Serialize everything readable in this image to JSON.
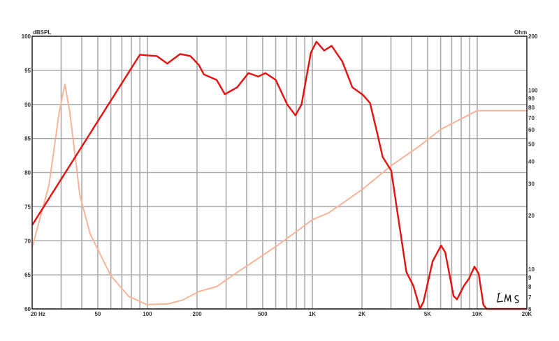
{
  "chart_data": {
    "type": "line",
    "title": "",
    "ylabel_left": "dBSPL",
    "ylabel_right": "Ohm",
    "x_scale": "log",
    "xlim": [
      20,
      20000
    ],
    "ylim_left": [
      60,
      100
    ],
    "ylim_right": [
      6,
      200
    ],
    "y_right_scale": "log",
    "grid": true,
    "x_ticks": [
      {
        "value": 20,
        "label": "20  Hz"
      },
      {
        "value": 50,
        "label": "50"
      },
      {
        "value": 100,
        "label": "100"
      },
      {
        "value": 200,
        "label": "200"
      },
      {
        "value": 500,
        "label": "500"
      },
      {
        "value": 1000,
        "label": "1K"
      },
      {
        "value": 2000,
        "label": "2K"
      },
      {
        "value": 5000,
        "label": "5K"
      },
      {
        "value": 10000,
        "label": "10K"
      },
      {
        "value": 20000,
        "label": "20K"
      }
    ],
    "y_left_ticks": [
      {
        "value": 100,
        "label": "100"
      },
      {
        "value": 95,
        "label": "95"
      },
      {
        "value": 90,
        "label": "90"
      },
      {
        "value": 85,
        "label": "85"
      },
      {
        "value": 80,
        "label": "80"
      },
      {
        "value": 75,
        "label": "75"
      },
      {
        "value": 70,
        "label": "70"
      },
      {
        "value": 65,
        "label": "65"
      },
      {
        "value": 60,
        "label": "60"
      }
    ],
    "y_right_ticks": [
      {
        "value": 200,
        "label": "200"
      },
      {
        "value": 100,
        "label": "100"
      },
      {
        "value": 90,
        "label": "90"
      },
      {
        "value": 80,
        "label": "80"
      },
      {
        "value": 70,
        "label": "70"
      },
      {
        "value": 60,
        "label": "60"
      },
      {
        "value": 50,
        "label": "50"
      },
      {
        "value": 40,
        "label": "40"
      },
      {
        "value": 30,
        "label": "30"
      },
      {
        "value": 20,
        "label": "20"
      },
      {
        "value": 10,
        "label": "10"
      },
      {
        "value": 9,
        "label": "9"
      },
      {
        "value": 8,
        "label": "8"
      },
      {
        "value": 7,
        "label": "7"
      },
      {
        "value": 6,
        "label": "6"
      }
    ],
    "series": [
      {
        "axis": "left",
        "color": "#e8100f",
        "points": [
          [
            20,
            72.3
          ],
          [
            90,
            97.3
          ],
          [
            100,
            97.2
          ],
          [
            114,
            97.1
          ],
          [
            132,
            96.0
          ],
          [
            158,
            97.4
          ],
          [
            182,
            97.1
          ],
          [
            205,
            95.8
          ],
          [
            220,
            94.4
          ],
          [
            263,
            93.6
          ],
          [
            295,
            91.5
          ],
          [
            350,
            92.5
          ],
          [
            410,
            94.6
          ],
          [
            470,
            94.1
          ],
          [
            520,
            94.6
          ],
          [
            600,
            93.6
          ],
          [
            704,
            90.0
          ],
          [
            790,
            88.4
          ],
          [
            860,
            90.0
          ],
          [
            980,
            97.6
          ],
          [
            1060,
            99.2
          ],
          [
            1180,
            97.9
          ],
          [
            1310,
            98.6
          ],
          [
            1520,
            96.3
          ],
          [
            1750,
            92.5
          ],
          [
            2030,
            91.4
          ],
          [
            2240,
            90.2
          ],
          [
            2470,
            85.9
          ],
          [
            2670,
            82.3
          ],
          [
            3010,
            80.3
          ],
          [
            3310,
            73.6
          ],
          [
            3720,
            65.4
          ],
          [
            4100,
            63.4
          ],
          [
            4500,
            60.0
          ],
          [
            4730,
            61.1
          ],
          [
            5370,
            67.0
          ],
          [
            6040,
            69.3
          ],
          [
            6400,
            68.3
          ],
          [
            7190,
            61.9
          ],
          [
            7540,
            61.4
          ],
          [
            8300,
            63.4
          ],
          [
            8890,
            64.4
          ],
          [
            9620,
            66.2
          ],
          [
            10200,
            65.2
          ],
          [
            10900,
            60.6
          ],
          [
            11400,
            60.0
          ],
          [
            20000,
            60.0
          ]
        ]
      },
      {
        "axis": "right",
        "color": "#f9b497",
        "points": [
          [
            20,
            13.2
          ],
          [
            25.3,
            29.5
          ],
          [
            29.2,
            75.7
          ],
          [
            31.6,
            108
          ],
          [
            33.8,
            75.7
          ],
          [
            39,
            25.8
          ],
          [
            45,
            15.7
          ],
          [
            60,
            9.2
          ],
          [
            77,
            7.05
          ],
          [
            99,
            6.35
          ],
          [
            133,
            6.4
          ],
          [
            162,
            6.7
          ],
          [
            205,
            7.5
          ],
          [
            263,
            8.0
          ],
          [
            350,
            9.6
          ],
          [
            470,
            11.5
          ],
          [
            630,
            13.8
          ],
          [
            850,
            16.9
          ],
          [
            1000,
            18.9
          ],
          [
            1250,
            20.6
          ],
          [
            1520,
            23.3
          ],
          [
            2030,
            28.1
          ],
          [
            3010,
            37.9
          ],
          [
            4450,
            48.6
          ],
          [
            6020,
            60.4
          ],
          [
            9970,
            76.8
          ],
          [
            20000,
            76.8
          ]
        ]
      }
    ],
    "watermark": "LMS"
  }
}
